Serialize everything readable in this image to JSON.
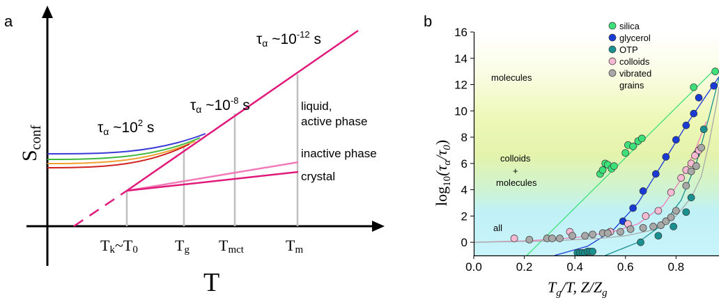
{
  "panel_a": {
    "letter": "a",
    "y_axis_label": "S",
    "y_axis_sub": "conf",
    "x_axis_label": "T",
    "tau_labels": [
      {
        "pre": "τ",
        "sub": "α",
        "mid": " ~10",
        "sup": "-12",
        "post": " s"
      },
      {
        "pre": "τ",
        "sub": "α",
        "mid": " ~10",
        "sup": "-8",
        "post": " s"
      },
      {
        "pre": "τ",
        "sub": "α",
        "mid": " ~10",
        "sup": "2",
        "post": " s"
      }
    ],
    "phase_labels": {
      "liquid_line1": "liquid,",
      "liquid_line2": "active phase",
      "inactive": "inactive phase",
      "crystal": "crystal"
    },
    "x_ticks": [
      {
        "a": "T",
        "a_sub": "k",
        "mid": "~",
        "b": "T",
        "b_sub": "0"
      },
      {
        "a": "T",
        "a_sub": "g"
      },
      {
        "a": "T",
        "a_sub": "mct"
      },
      {
        "a": "T",
        "a_sub": "m"
      }
    ],
    "curve_colors": [
      "#3a3ad6",
      "#3cb83c",
      "#f0a030",
      "#d02020"
    ],
    "main_line_color": "#e0197a",
    "inactive_line_color": "#f27ab8"
  },
  "chart_data": {
    "type": "scatter",
    "letter": "b",
    "xlim": [
      0.0,
      0.97
    ],
    "ylim": [
      -1,
      16
    ],
    "x_ticks": [
      "0.0",
      "0.2",
      "0.4",
      "0.6",
      "0.8"
    ],
    "y_ticks": [
      "0",
      "2",
      "4",
      "6",
      "8",
      "10",
      "12",
      "14",
      "16"
    ],
    "xlabel": {
      "a": "T",
      "a_sub": "g",
      "b": "/T, Z/Z",
      "b_sub": "g"
    },
    "ylabel": {
      "pre": "log",
      "pre_sub": "10",
      "open": "(τ",
      "mid_sub": "α",
      "mid": "/τ",
      "end_sub": "0",
      "close": ")"
    },
    "regions": {
      "molecules": "molecules",
      "colloids": "colloids",
      "plus": "+",
      "molecules2": "molecules",
      "all": "all"
    },
    "series": [
      {
        "name": "silica",
        "color": "#3ee07a",
        "points": [
          [
            0.5,
            5.2
          ],
          [
            0.51,
            5.5
          ],
          [
            0.52,
            6.0
          ],
          [
            0.53,
            5.9
          ],
          [
            0.545,
            5.6
          ],
          [
            0.555,
            5.8
          ],
          [
            0.6,
            6.8
          ],
          [
            0.61,
            7.4
          ],
          [
            0.63,
            7.3
          ],
          [
            0.65,
            7.7
          ],
          [
            0.665,
            7.9
          ],
          [
            0.87,
            11.8
          ],
          [
            0.955,
            13.0
          ]
        ]
      },
      {
        "name": "glycerol",
        "color": "#1a3ad6",
        "points": [
          [
            0.54,
            0.8
          ],
          [
            0.59,
            1.6
          ],
          [
            0.63,
            2.6
          ],
          [
            0.67,
            3.9
          ],
          [
            0.72,
            5.2
          ],
          [
            0.76,
            6.5
          ],
          [
            0.8,
            7.8
          ],
          [
            0.84,
            8.9
          ],
          [
            0.87,
            9.8
          ],
          [
            0.89,
            11.0
          ],
          [
            0.95,
            11.9
          ]
        ]
      },
      {
        "name": "OTP",
        "color": "#1a9090",
        "points": [
          [
            0.41,
            -0.8
          ],
          [
            0.42,
            -0.8
          ],
          [
            0.43,
            -0.8
          ],
          [
            0.44,
            -0.8
          ],
          [
            0.45,
            -0.7
          ],
          [
            0.46,
            -0.7
          ],
          [
            0.47,
            -0.7
          ],
          [
            0.66,
            0.0
          ],
          [
            0.73,
            0.5
          ],
          [
            0.79,
            1.2
          ],
          [
            0.84,
            2.3
          ],
          [
            0.86,
            3.4
          ],
          [
            0.88,
            6.7
          ],
          [
            0.91,
            8.6
          ]
        ]
      },
      {
        "name": "colloids",
        "color": "#f7b8d2",
        "points": [
          [
            0.16,
            0.3
          ],
          [
            0.38,
            0.8
          ],
          [
            0.54,
            0.8
          ],
          [
            0.61,
            1.4
          ],
          [
            0.68,
            2.0
          ],
          [
            0.73,
            2.4
          ],
          [
            0.78,
            3.8
          ],
          [
            0.82,
            4.9
          ],
          [
            0.84,
            5.5
          ],
          [
            0.86,
            6.0
          ],
          [
            0.875,
            6.6
          ],
          [
            0.89,
            7.0
          ]
        ]
      },
      {
        "name": "vibrated grains",
        "name_line1": "vibrated",
        "name_line2": "grains",
        "color": "#a8a8a8",
        "points": [
          [
            0.22,
            0.2
          ],
          [
            0.29,
            0.3
          ],
          [
            0.31,
            0.3
          ],
          [
            0.34,
            0.3
          ],
          [
            0.39,
            0.5
          ],
          [
            0.44,
            0.5
          ],
          [
            0.47,
            0.6
          ],
          [
            0.51,
            0.7
          ],
          [
            0.53,
            0.7
          ],
          [
            0.58,
            0.8
          ],
          [
            0.62,
            1.0
          ],
          [
            0.67,
            1.1
          ],
          [
            0.71,
            1.2
          ],
          [
            0.74,
            1.3
          ],
          [
            0.76,
            1.6
          ],
          [
            0.78,
            1.9
          ],
          [
            0.8,
            2.4
          ],
          [
            0.84,
            4.3
          ],
          [
            0.86,
            5.4
          ],
          [
            0.88,
            5.8
          ],
          [
            0.9,
            7.2
          ]
        ]
      }
    ],
    "fits": [
      {
        "color": "#3ee07a",
        "points": [
          [
            0.21,
            -1.0
          ],
          [
            0.955,
            13.2
          ]
        ]
      },
      {
        "color": "#1a3ad6",
        "points": [
          [
            0.32,
            -1.0
          ],
          [
            0.45,
            -0.3
          ],
          [
            0.55,
            0.9
          ],
          [
            0.65,
            3.0
          ],
          [
            0.75,
            6.1
          ],
          [
            0.85,
            9.2
          ],
          [
            0.97,
            12.6
          ]
        ]
      },
      {
        "color": "#1a9090",
        "points": [
          [
            0.52,
            -1.0
          ],
          [
            0.65,
            0.0
          ],
          [
            0.75,
            1.4
          ],
          [
            0.82,
            3.2
          ],
          [
            0.88,
            6.0
          ],
          [
            0.93,
            9.5
          ],
          [
            0.97,
            12.5
          ]
        ]
      },
      {
        "color": "#f27ab8",
        "points": [
          [
            0.0,
            0.0
          ],
          [
            0.2,
            0.1
          ],
          [
            0.4,
            0.35
          ],
          [
            0.55,
            0.8
          ],
          [
            0.65,
            1.4
          ],
          [
            0.75,
            2.8
          ],
          [
            0.82,
            4.8
          ],
          [
            0.88,
            7.2
          ],
          [
            0.92,
            9.2
          ]
        ]
      },
      {
        "color": "#a8a8a8",
        "points": [
          [
            0.0,
            0.0
          ],
          [
            0.3,
            0.1
          ],
          [
            0.5,
            0.3
          ],
          [
            0.6,
            0.5
          ],
          [
            0.7,
            0.9
          ],
          [
            0.8,
            2.0
          ],
          [
            0.86,
            3.4
          ],
          [
            0.9,
            5.0
          ],
          [
            0.93,
            7.5
          ],
          [
            0.96,
            10.5
          ],
          [
            0.97,
            11.8
          ]
        ]
      }
    ]
  }
}
